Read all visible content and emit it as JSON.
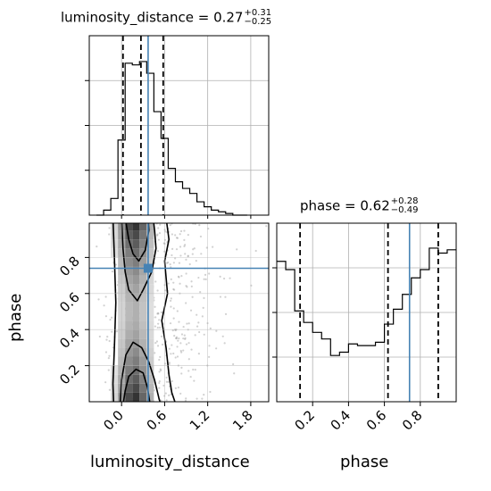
{
  "chart_data": [
    {
      "type": "histogram",
      "panel": "luminosity_distance marginal",
      "title": {
        "name": "luminosity_distance",
        "median": "0.27",
        "plus": "+0.31",
        "minus": "−0.25"
      },
      "xlim": [
        -0.45,
        2.05
      ],
      "bins": [
        -0.35,
        -0.25,
        -0.15,
        -0.05,
        0.05,
        0.15,
        0.25,
        0.35,
        0.45,
        0.55,
        0.65,
        0.75,
        0.85,
        0.95,
        1.05,
        1.15,
        1.25,
        1.35,
        1.45,
        1.55,
        1.65,
        1.75
      ],
      "counts": [
        0.0,
        0.03,
        0.1,
        0.45,
        0.91,
        0.9,
        0.92,
        0.85,
        0.62,
        0.46,
        0.28,
        0.2,
        0.16,
        0.13,
        0.08,
        0.05,
        0.03,
        0.02,
        0.01,
        0.0,
        0.0
      ],
      "quantile_lines": [
        0.02,
        0.27,
        0.58
      ],
      "truth": 0.37
    },
    {
      "type": "heatmap",
      "panel": "2D density",
      "xlabel": "luminosity_distance",
      "ylabel": "phase",
      "xlim": [
        -0.45,
        2.05
      ],
      "ylim": [
        0.0,
        0.99
      ],
      "x_ticks": [
        "0.0",
        "0.6",
        "1.2",
        "1.8"
      ],
      "x_tick_values": [
        0.0,
        0.6,
        1.2,
        1.8
      ],
      "y_ticks": [
        "0.2",
        "0.4",
        "0.6",
        "0.8"
      ],
      "y_tick_values": [
        0.2,
        0.4,
        0.6,
        0.8
      ],
      "truth": {
        "x": 0.37,
        "y": 0.74
      }
    },
    {
      "type": "histogram",
      "panel": "phase marginal",
      "title": {
        "name": "phase",
        "median": "0.62",
        "plus": "+0.28",
        "minus": "−0.49"
      },
      "xlabel": "phase",
      "xlim": [
        0.0,
        1.0
      ],
      "x_ticks": [
        "0.2",
        "0.4",
        "0.6",
        "0.8"
      ],
      "x_tick_values": [
        0.2,
        0.4,
        0.6,
        0.8
      ],
      "bins": [
        0.0,
        0.05,
        0.1,
        0.15,
        0.2,
        0.25,
        0.3,
        0.35,
        0.4,
        0.45,
        0.5,
        0.55,
        0.6,
        0.65,
        0.7,
        0.75,
        0.8,
        0.85,
        0.9,
        0.95,
        1.0
      ],
      "counts": [
        0.85,
        0.8,
        0.55,
        0.48,
        0.42,
        0.38,
        0.28,
        0.3,
        0.35,
        0.34,
        0.34,
        0.36,
        0.47,
        0.56,
        0.65,
        0.75,
        0.8,
        0.93,
        0.9,
        0.92
      ],
      "quantile_lines": [
        0.13,
        0.62,
        0.9
      ],
      "truth": 0.74
    }
  ]
}
